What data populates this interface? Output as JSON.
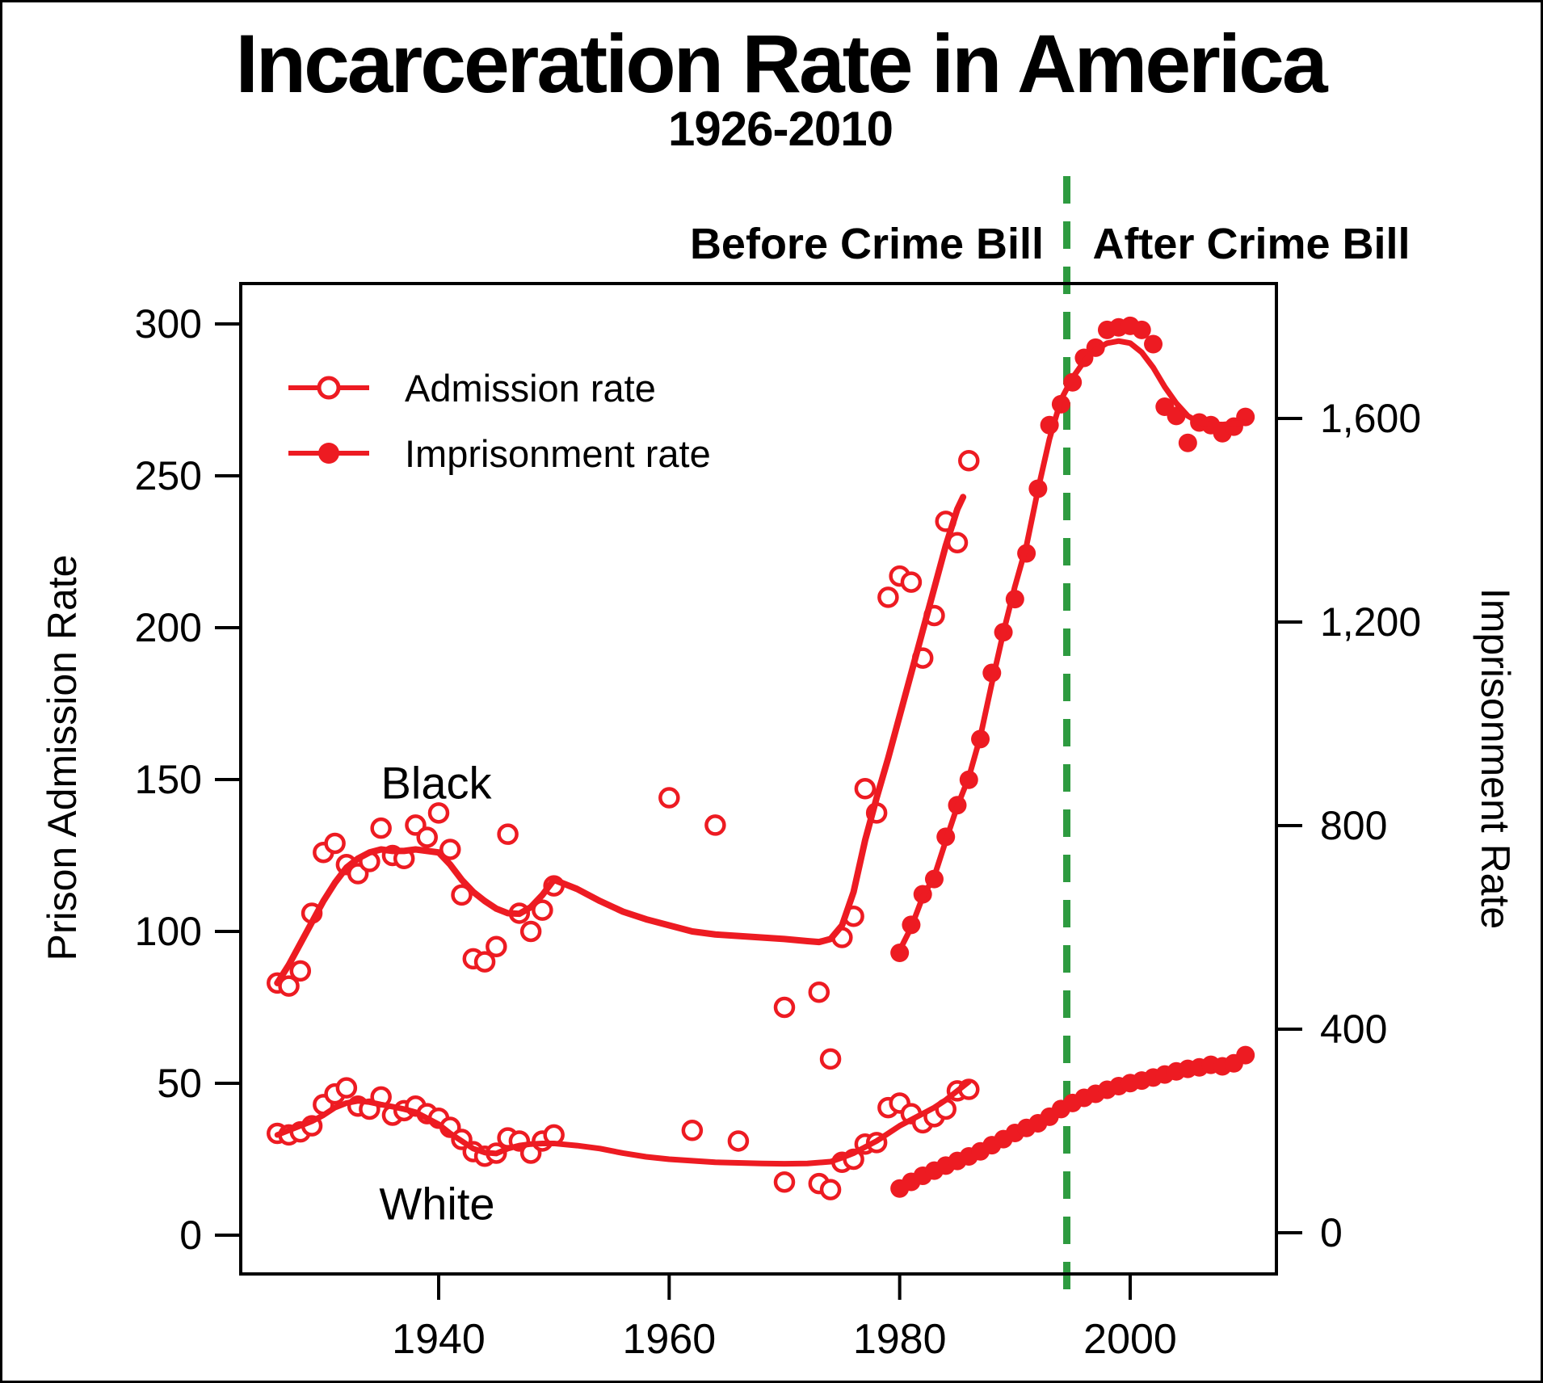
{
  "title": "Incarceration Rate in America",
  "subtitle": "1926-2010",
  "colors": {
    "red": "#ED1B22",
    "green": "#2E9B40",
    "black": "#000000"
  },
  "legend": {
    "items": [
      {
        "label": "Admission rate",
        "marker": "open"
      },
      {
        "label": "Imprisonment rate",
        "marker": "filled"
      }
    ]
  },
  "annotations": {
    "before_crime_bill": "Before Crime Bill",
    "after_crime_bill": "After Crime Bill",
    "crime_bill_year": 1994.5,
    "black_group_label": "Black",
    "white_group_label": "White"
  },
  "chart_data": {
    "type": "scatter",
    "title": "Incarceration Rate in America",
    "subtitle": "1926-2010",
    "xlabel": "",
    "ylabel_left": "Prison Admission Rate",
    "ylabel_right": "Imprisonment Rate",
    "x_ticks": [
      1940,
      1960,
      1980,
      2000
    ],
    "xlim": [
      1922.8,
      2012.7
    ],
    "y_left_ticks": [
      0,
      50,
      100,
      150,
      200,
      250,
      300
    ],
    "y_left_lim": [
      -12.8,
      313.3
    ],
    "y_right_ticks": [
      "0",
      "400",
      "800",
      "1,200",
      "1,600"
    ],
    "y_right_tick_values": [
      0,
      400,
      800,
      1200,
      1600
    ],
    "y_right_lim": [
      -81,
      1865
    ],
    "grid": false,
    "legend_position": "top-left-inside",
    "series": [
      {
        "name": "black-admission",
        "group": "Black",
        "kind": "points",
        "marker": "open",
        "axis": "left",
        "points": [
          [
            1926,
            83
          ],
          [
            1927,
            82
          ],
          [
            1928,
            87
          ],
          [
            1929,
            106
          ],
          [
            1930,
            126
          ],
          [
            1931,
            129
          ],
          [
            1932,
            122
          ],
          [
            1933,
            119
          ],
          [
            1934,
            123
          ],
          [
            1935,
            134
          ],
          [
            1936,
            125
          ],
          [
            1937,
            124
          ],
          [
            1938,
            135
          ],
          [
            1939,
            131
          ],
          [
            1940,
            139
          ],
          [
            1941,
            127
          ],
          [
            1942,
            112
          ],
          [
            1943,
            91
          ],
          [
            1944,
            90
          ],
          [
            1945,
            95
          ],
          [
            1946,
            132
          ],
          [
            1947,
            106
          ],
          [
            1948,
            100
          ],
          [
            1949,
            107
          ],
          [
            1950,
            115
          ],
          [
            1960,
            144
          ],
          [
            1964,
            135
          ],
          [
            1970,
            75
          ],
          [
            1973,
            80
          ],
          [
            1974,
            58
          ],
          [
            1975,
            98
          ],
          [
            1976,
            105
          ],
          [
            1977,
            147
          ],
          [
            1978,
            139
          ],
          [
            1979,
            210
          ],
          [
            1980,
            217
          ],
          [
            1981,
            215
          ],
          [
            1982,
            190
          ],
          [
            1983,
            204
          ],
          [
            1984,
            235
          ],
          [
            1985,
            228
          ],
          [
            1986,
            255
          ]
        ]
      },
      {
        "name": "black-admission-trend",
        "group": "Black",
        "kind": "line",
        "axis": "left",
        "width": 8,
        "points": [
          [
            1926,
            83
          ],
          [
            1927,
            89
          ],
          [
            1928,
            96
          ],
          [
            1929,
            103
          ],
          [
            1930,
            110
          ],
          [
            1931,
            116
          ],
          [
            1932,
            121
          ],
          [
            1933,
            124
          ],
          [
            1934,
            126
          ],
          [
            1935,
            127
          ],
          [
            1936,
            126.5
          ],
          [
            1937,
            126.5
          ],
          [
            1938,
            127
          ],
          [
            1939,
            126.5
          ],
          [
            1940,
            126
          ],
          [
            1941,
            122
          ],
          [
            1942,
            117
          ],
          [
            1943,
            113
          ],
          [
            1944,
            110
          ],
          [
            1945,
            107.5
          ],
          [
            1946,
            106
          ],
          [
            1947,
            105.8
          ],
          [
            1948,
            108
          ],
          [
            1949,
            112
          ],
          [
            1950,
            117
          ],
          [
            1952,
            114
          ],
          [
            1954,
            110
          ],
          [
            1956,
            106.5
          ],
          [
            1958,
            104
          ],
          [
            1960,
            102
          ],
          [
            1962,
            100
          ],
          [
            1964,
            99
          ],
          [
            1966,
            98.5
          ],
          [
            1968,
            98
          ],
          [
            1970,
            97.5
          ],
          [
            1972,
            96.8
          ],
          [
            1973,
            96.5
          ],
          [
            1974,
            97.5
          ],
          [
            1975,
            102
          ],
          [
            1976,
            113
          ],
          [
            1977,
            130
          ],
          [
            1978,
            144
          ],
          [
            1979,
            157
          ],
          [
            1980,
            171
          ],
          [
            1981,
            185
          ],
          [
            1982,
            199
          ],
          [
            1983,
            213
          ],
          [
            1984,
            227
          ],
          [
            1985,
            239
          ],
          [
            1985.5,
            243
          ]
        ]
      },
      {
        "name": "white-admission",
        "group": "White",
        "kind": "points",
        "marker": "open",
        "axis": "left",
        "points": [
          [
            1926,
            33.5
          ],
          [
            1927,
            33
          ],
          [
            1928,
            34
          ],
          [
            1929,
            36
          ],
          [
            1930,
            43
          ],
          [
            1931,
            46.5
          ],
          [
            1932,
            48.5
          ],
          [
            1933,
            42.5
          ],
          [
            1934,
            41.5
          ],
          [
            1935,
            45.5
          ],
          [
            1936,
            39.5
          ],
          [
            1937,
            41
          ],
          [
            1938,
            42.5
          ],
          [
            1939,
            40
          ],
          [
            1940,
            38.5
          ],
          [
            1941,
            35.5
          ],
          [
            1942,
            31.5
          ],
          [
            1943,
            27.5
          ],
          [
            1944,
            26
          ],
          [
            1945,
            27
          ],
          [
            1946,
            32
          ],
          [
            1947,
            31
          ],
          [
            1948,
            27
          ],
          [
            1949,
            31
          ],
          [
            1950,
            33
          ],
          [
            1962,
            34.5
          ],
          [
            1966,
            31
          ],
          [
            1970,
            17.5
          ],
          [
            1973,
            17
          ],
          [
            1974,
            15
          ],
          [
            1975,
            24
          ],
          [
            1976,
            25
          ],
          [
            1977,
            30
          ],
          [
            1978,
            30.5
          ],
          [
            1979,
            42
          ],
          [
            1980,
            43.5
          ],
          [
            1981,
            40
          ],
          [
            1982,
            37
          ],
          [
            1983,
            39
          ],
          [
            1984,
            41.5
          ],
          [
            1985,
            47.5
          ],
          [
            1986,
            48
          ]
        ]
      },
      {
        "name": "white-admission-trend",
        "group": "White",
        "kind": "line",
        "axis": "left",
        "width": 7,
        "points": [
          [
            1926,
            33
          ],
          [
            1927,
            34.5
          ],
          [
            1928,
            36
          ],
          [
            1929,
            37.5
          ],
          [
            1930,
            39.5
          ],
          [
            1931,
            42
          ],
          [
            1932,
            43.5
          ],
          [
            1933,
            44.2
          ],
          [
            1934,
            43.8
          ],
          [
            1935,
            43
          ],
          [
            1936,
            42.3
          ],
          [
            1937,
            41.5
          ],
          [
            1938,
            40.5
          ],
          [
            1939,
            38.5
          ],
          [
            1940,
            36.5
          ],
          [
            1941,
            33.5
          ],
          [
            1942,
            31
          ],
          [
            1943,
            28.5
          ],
          [
            1944,
            27.2
          ],
          [
            1945,
            26.9
          ],
          [
            1946,
            28.5
          ],
          [
            1947,
            29.5
          ],
          [
            1948,
            30
          ],
          [
            1949,
            30.2
          ],
          [
            1950,
            30.2
          ],
          [
            1952,
            29.5
          ],
          [
            1954,
            28.5
          ],
          [
            1956,
            27
          ],
          [
            1958,
            25.8
          ],
          [
            1960,
            25
          ],
          [
            1962,
            24.5
          ],
          [
            1964,
            24
          ],
          [
            1966,
            23.8
          ],
          [
            1968,
            23.6
          ],
          [
            1970,
            23.5
          ],
          [
            1972,
            23.6
          ],
          [
            1974,
            24.2
          ],
          [
            1975,
            25.5
          ],
          [
            1976,
            27
          ],
          [
            1977,
            29
          ],
          [
            1978,
            31
          ],
          [
            1979,
            33.5
          ],
          [
            1980,
            36
          ],
          [
            1981,
            38
          ],
          [
            1982,
            40
          ],
          [
            1983,
            42
          ],
          [
            1984,
            44.5
          ],
          [
            1985,
            47.5
          ],
          [
            1986,
            50.5
          ]
        ]
      },
      {
        "name": "black-imprisonment",
        "group": "Black",
        "kind": "points",
        "marker": "filled",
        "axis": "right",
        "points": [
          [
            1980,
            550
          ],
          [
            1981,
            605
          ],
          [
            1982,
            665
          ],
          [
            1983,
            695
          ],
          [
            1984,
            778
          ],
          [
            1985,
            840
          ],
          [
            1986,
            890
          ],
          [
            1987,
            970
          ],
          [
            1988,
            1100
          ],
          [
            1989,
            1180
          ],
          [
            1990,
            1245
          ],
          [
            1991,
            1335
          ],
          [
            1992,
            1462
          ],
          [
            1993,
            1587
          ],
          [
            1994,
            1628
          ],
          [
            1995,
            1671
          ],
          [
            1996,
            1719
          ],
          [
            1997,
            1739
          ],
          [
            1998,
            1774
          ],
          [
            1999,
            1779
          ],
          [
            2000,
            1782
          ],
          [
            2001,
            1774
          ],
          [
            2002,
            1746
          ],
          [
            2003,
            1623
          ],
          [
            2004,
            1605
          ],
          [
            2005,
            1552
          ],
          [
            2006,
            1592
          ],
          [
            2007,
            1587
          ],
          [
            2008,
            1571
          ],
          [
            2009,
            1584
          ],
          [
            2010,
            1603
          ]
        ]
      },
      {
        "name": "black-imprisonment-trend",
        "group": "Black",
        "kind": "line",
        "axis": "right",
        "width": 7,
        "points": [
          [
            1980,
            555
          ],
          [
            1981,
            600
          ],
          [
            1982,
            660
          ],
          [
            1983,
            700
          ],
          [
            1984,
            770
          ],
          [
            1985,
            838
          ],
          [
            1986,
            895
          ],
          [
            1987,
            975
          ],
          [
            1988,
            1080
          ],
          [
            1989,
            1180
          ],
          [
            1990,
            1270
          ],
          [
            1991,
            1350
          ],
          [
            1992,
            1460
          ],
          [
            1993,
            1560
          ],
          [
            1994,
            1637
          ],
          [
            1995,
            1680
          ],
          [
            1996,
            1712
          ],
          [
            1997,
            1735
          ],
          [
            1998,
            1748
          ],
          [
            1999,
            1752
          ],
          [
            2000,
            1748
          ],
          [
            2001,
            1730
          ],
          [
            2002,
            1700
          ],
          [
            2003,
            1662
          ],
          [
            2004,
            1630
          ],
          [
            2005,
            1605
          ],
          [
            2006,
            1592
          ],
          [
            2007,
            1588
          ],
          [
            2008,
            1588
          ],
          [
            2009,
            1590
          ],
          [
            2010,
            1592
          ]
        ]
      },
      {
        "name": "white-imprisonment",
        "group": "White",
        "kind": "points-line",
        "marker": "filled",
        "axis": "right",
        "width": 5,
        "points": [
          [
            1980,
            87
          ],
          [
            1981,
            100
          ],
          [
            1982,
            112
          ],
          [
            1983,
            122
          ],
          [
            1984,
            132
          ],
          [
            1985,
            141
          ],
          [
            1986,
            150
          ],
          [
            1987,
            160
          ],
          [
            1988,
            172
          ],
          [
            1989,
            184
          ],
          [
            1990,
            196
          ],
          [
            1991,
            206
          ],
          [
            1992,
            215
          ],
          [
            1993,
            228
          ],
          [
            1994,
            243
          ],
          [
            1995,
            255
          ],
          [
            1996,
            265
          ],
          [
            1997,
            273
          ],
          [
            1998,
            281
          ],
          [
            1999,
            288
          ],
          [
            2000,
            294
          ],
          [
            2001,
            299
          ],
          [
            2002,
            305
          ],
          [
            2003,
            311
          ],
          [
            2004,
            317
          ],
          [
            2005,
            322
          ],
          [
            2006,
            325
          ],
          [
            2007,
            330
          ],
          [
            2008,
            327
          ],
          [
            2009,
            333
          ],
          [
            2010,
            349
          ]
        ]
      }
    ]
  }
}
